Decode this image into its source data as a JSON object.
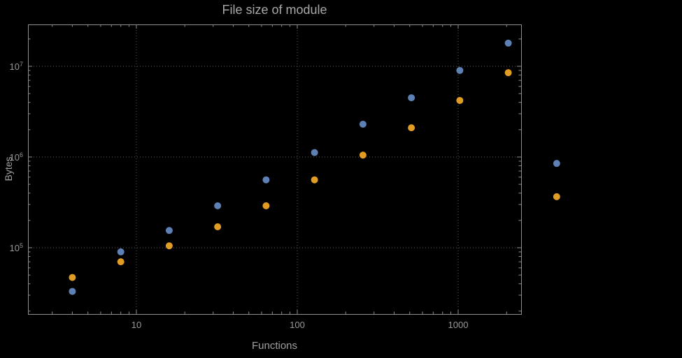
{
  "title": "File size of module",
  "colors": {
    "background": "#000000",
    "frame": "#8f8f8f",
    "grid": "#5e5e5e",
    "text": "#a0a0a0",
    "series1": "#5e81b5",
    "series2": "#e19c24"
  },
  "chart_data": {
    "type": "scatter",
    "title": "File size of module",
    "xlabel": "Functions",
    "ylabel": "Bytes",
    "xscale": "log",
    "yscale": "log",
    "xlim": [
      2.12,
      2462
    ],
    "ylim": [
      18580,
      28940000
    ],
    "x_ticks": [
      10,
      100,
      1000
    ],
    "y_ticks": [
      100000,
      1000000,
      10000000
    ],
    "grid": true,
    "legend": "none",
    "series": [
      {
        "name": "series-1-blue",
        "color": "#5e81b5",
        "points": [
          [
            4,
            33000
          ],
          [
            8,
            90000
          ],
          [
            16,
            155000
          ],
          [
            32,
            290000
          ],
          [
            64,
            560000
          ],
          [
            128,
            1120000
          ],
          [
            256,
            2300000
          ],
          [
            512,
            4500000
          ],
          [
            1024,
            9000000
          ],
          [
            2048,
            18000000
          ],
          [
            4096,
            850000
          ]
        ]
      },
      {
        "name": "series-2-orange",
        "color": "#e19c24",
        "points": [
          [
            4,
            47000
          ],
          [
            8,
            70000
          ],
          [
            16,
            105000
          ],
          [
            32,
            170000
          ],
          [
            64,
            290000
          ],
          [
            128,
            560000
          ],
          [
            256,
            1050000
          ],
          [
            512,
            2100000
          ],
          [
            1024,
            4200000
          ],
          [
            2048,
            8500000
          ],
          [
            4096,
            365000
          ]
        ]
      }
    ]
  }
}
